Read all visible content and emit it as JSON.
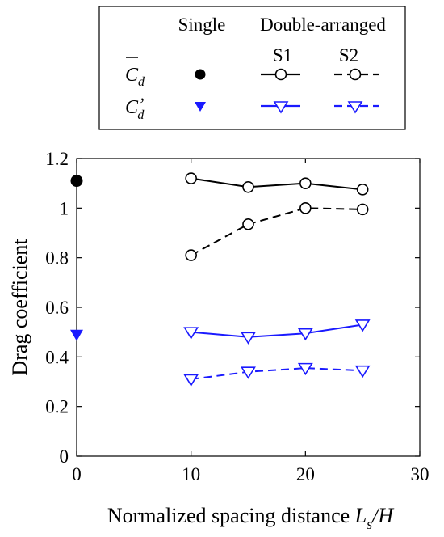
{
  "legend": {
    "col_single": "Single",
    "col_double": "Double-arranged",
    "col_s1": "S1",
    "col_s2": "S2",
    "row_mean": {
      "base": "C",
      "sub": "d"
    },
    "row_fluct": {
      "base": "C",
      "sup": "’",
      "sub": "d"
    }
  },
  "colors": {
    "black": "#000000",
    "blue": "#1a1aff"
  },
  "chart_data": {
    "type": "line",
    "xlabel": {
      "text": "Normalized spacing distance ",
      "var": "L",
      "sub": "s",
      "tail": "/H"
    },
    "ylabel": "Drag coefficient",
    "xlim": [
      0,
      30
    ],
    "ylim": [
      0,
      1.2
    ],
    "xticks": [
      0,
      10,
      20,
      30
    ],
    "yticks": [
      0,
      0.2,
      0.4,
      0.6,
      0.8,
      1,
      1.2
    ],
    "xtick_labels": [
      "0",
      "10",
      "20",
      "30"
    ],
    "ytick_labels": [
      "0",
      "0.2",
      "0.4",
      "0.6",
      "0.8",
      "1",
      "1.2"
    ],
    "grid": false,
    "single": [
      {
        "x": 0,
        "y": 1.11,
        "marker": "filled-circle",
        "color": "black"
      },
      {
        "x": 0,
        "y": 0.49,
        "marker": "filled-triangle-down",
        "color": "blue"
      }
    ],
    "series": [
      {
        "x": [
          10,
          15,
          20,
          25
        ],
        "values": [
          1.12,
          1.085,
          1.1,
          1.075
        ],
        "color": "black",
        "dash": "solid",
        "marker": "circle"
      },
      {
        "x": [
          10,
          15,
          20,
          25
        ],
        "values": [
          0.81,
          0.935,
          1.0,
          0.995
        ],
        "color": "black",
        "dash": "dashed",
        "marker": "circle"
      },
      {
        "x": [
          10,
          15,
          20,
          25
        ],
        "values": [
          0.5,
          0.48,
          0.495,
          0.53
        ],
        "color": "blue",
        "dash": "solid",
        "marker": "triangle-down"
      },
      {
        "x": [
          10,
          15,
          20,
          25
        ],
        "values": [
          0.31,
          0.34,
          0.355,
          0.345
        ],
        "color": "blue",
        "dash": "dashed",
        "marker": "triangle-down"
      }
    ]
  }
}
